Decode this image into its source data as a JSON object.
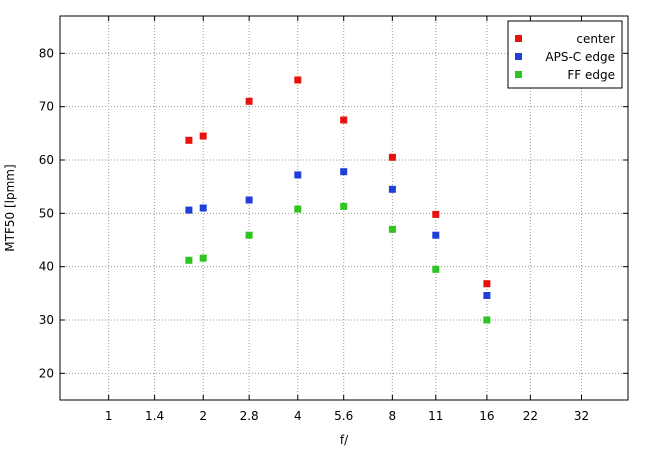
{
  "chart_data": {
    "type": "scatter",
    "title": "",
    "xlabel": "f/",
    "ylabel": "MTF50 [lpmm]",
    "x_scale": "log-aperture",
    "x_ticks": [
      "1",
      "1.4",
      "2",
      "2.8",
      "4",
      "5.6",
      "8",
      "11",
      "16",
      "22",
      "32"
    ],
    "xlim": [
      0.7,
      45
    ],
    "ylim": [
      15,
      87
    ],
    "y_ticks": [
      20,
      30,
      40,
      50,
      60,
      70,
      80
    ],
    "grid": true,
    "legend_position": "top-right",
    "series": [
      {
        "name": "center",
        "color": "#e8120c",
        "x": [
          1.8,
          2,
          2.8,
          4,
          5.6,
          8,
          11,
          16
        ],
        "y": [
          63.7,
          64.5,
          71.0,
          75.0,
          67.5,
          60.5,
          49.8,
          36.8
        ]
      },
      {
        "name": "APS-C edge",
        "color": "#1f3fd6",
        "x": [
          1.8,
          2,
          2.8,
          4,
          5.6,
          8,
          11,
          16
        ],
        "y": [
          50.6,
          51.0,
          52.5,
          57.2,
          57.8,
          54.5,
          45.9,
          34.6
        ]
      },
      {
        "name": "FF edge",
        "color": "#2ec520",
        "x": [
          1.8,
          2,
          2.8,
          4,
          5.6,
          8,
          11,
          16
        ],
        "y": [
          41.2,
          41.6,
          45.9,
          50.8,
          51.3,
          47.0,
          39.5,
          30.0
        ]
      }
    ]
  }
}
